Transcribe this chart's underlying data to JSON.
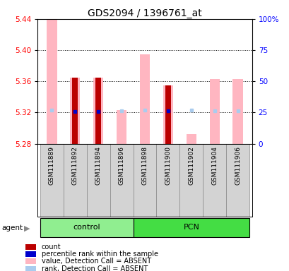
{
  "title": "GDS2094 / 1396761_at",
  "samples": [
    "GSM111889",
    "GSM111892",
    "GSM111894",
    "GSM111896",
    "GSM111898",
    "GSM111900",
    "GSM111902",
    "GSM111904",
    "GSM111906"
  ],
  "groups": [
    {
      "name": "control",
      "indices": [
        0,
        1,
        2,
        3
      ],
      "color": "#90EE90"
    },
    {
      "name": "PCN",
      "indices": [
        4,
        5,
        6,
        7,
        8
      ],
      "color": "#44DD44"
    }
  ],
  "ylim_left": [
    5.28,
    5.44
  ],
  "ylim_right": [
    0,
    100
  ],
  "yticks_left": [
    5.28,
    5.32,
    5.36,
    5.4,
    5.44
  ],
  "yticks_right": [
    0,
    25,
    50,
    75,
    100
  ],
  "ytick_labels_right": [
    "0",
    "25",
    "50",
    "75",
    "100%"
  ],
  "hlines": [
    5.32,
    5.36,
    5.4
  ],
  "pink_bar_tops": [
    5.44,
    5.365,
    5.365,
    5.323,
    5.395,
    5.355,
    5.292,
    5.363,
    5.363
  ],
  "red_bar_tops": [
    null,
    5.365,
    5.365,
    null,
    null,
    5.355,
    null,
    null,
    null
  ],
  "blue_dot_y": [
    null,
    5.321,
    5.321,
    null,
    null,
    5.322,
    null,
    null,
    null
  ],
  "light_blue_dot_y": [
    5.323,
    null,
    null,
    5.322,
    5.323,
    null,
    5.323,
    5.322,
    5.322
  ],
  "bar_bottom": 5.28,
  "pink_color": "#FFB6C1",
  "red_color": "#BB0000",
  "blue_color": "#0000CC",
  "light_blue_color": "#AACCEE",
  "label_bg": "#D3D3D3"
}
